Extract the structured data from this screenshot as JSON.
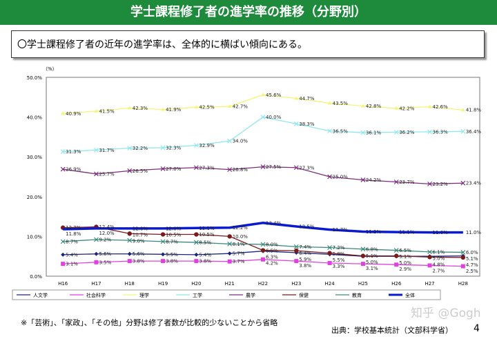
{
  "header": {
    "title": "学士課程修了者の進学率の推移（分野別）"
  },
  "lead": "〇学士課程修了者の近年の進学率は、全体的に横ばい傾向にある。",
  "note": "※「芸術」、「家政」、「その他」分野は修了者数が比較的少ないことから省略",
  "source": "出典：学校基本統計（文部科学省）",
  "page_number": "4",
  "watermark": "知乎 @Gogh",
  "chart_data": {
    "type": "line",
    "ylabel": "（%）",
    "ylim": [
      0,
      50
    ],
    "yticks": [
      "0.0%",
      "10.0%",
      "20.0%",
      "30.0%",
      "40.0%",
      "50.0%"
    ],
    "categories": [
      "H16",
      "H17",
      "H18",
      "H19",
      "H20",
      "H21",
      "H22",
      "H23",
      "H24",
      "H25",
      "H26",
      "H27",
      "H28"
    ],
    "grid": false,
    "legend": "bottom",
    "series": [
      {
        "name": "人文学",
        "color": "#1a237e",
        "marker": "diamond",
        "values": [
          5.4,
          5.6,
          5.6,
          5.5,
          5.4,
          5.7,
          6.3,
          5.9,
          5.5,
          5.0,
          5.0,
          5.0,
          5.1
        ]
      },
      {
        "name": "社会科学",
        "color": "#e040e0",
        "marker": "square",
        "values": [
          3.1,
          3.5,
          3.8,
          3.8,
          3.8,
          3.7,
          4.2,
          3.8,
          3.3,
          3.1,
          2.9,
          2.7,
          2.5
        ]
      },
      {
        "name": "理学",
        "color": "#f5f57a",
        "marker": "triangle",
        "values": [
          40.9,
          41.5,
          42.3,
          41.9,
          42.5,
          42.7,
          45.6,
          44.7,
          43.5,
          42.8,
          42.2,
          42.6,
          41.8
        ]
      },
      {
        "name": "工学",
        "color": "#8ee8f0",
        "marker": "x",
        "values": [
          31.3,
          31.7,
          32.2,
          32.3,
          32.9,
          34.0,
          40.0,
          38.3,
          36.5,
          36.1,
          36.2,
          36.3,
          36.4
        ]
      },
      {
        "name": "農学",
        "color": "#7b2d7b",
        "marker": "star",
        "values": [
          26.9,
          25.7,
          26.5,
          27.0,
          27.3,
          26.8,
          27.5,
          27.3,
          25.0,
          24.2,
          23.7,
          23.2,
          23.4
        ]
      },
      {
        "name": "保健",
        "color": "#7a1a1a",
        "marker": "circle",
        "values": [
          12.2,
          12.4,
          10.7,
          10.5,
          10.5,
          10.0,
          6.5,
          6.4,
          5.8,
          5.1,
          5.1,
          4.8,
          4.7
        ]
      },
      {
        "name": "教育",
        "color": "#3a8a7a",
        "marker": "plus",
        "values": [
          8.7,
          9.2,
          9.0,
          8.7,
          8.5,
          8.1,
          8.0,
          7.4,
          7.2,
          6.8,
          6.5,
          6.1,
          6.0
        ]
      },
      {
        "name": "全体",
        "color": "#0a1ad0",
        "marker": "none",
        "values": [
          11.8,
          12.0,
          12.0,
          12.0,
          12.1,
          12.2,
          13.4,
          12.5,
          11.7,
          11.2,
          11.1,
          11.0,
          11.0
        ]
      }
    ]
  }
}
